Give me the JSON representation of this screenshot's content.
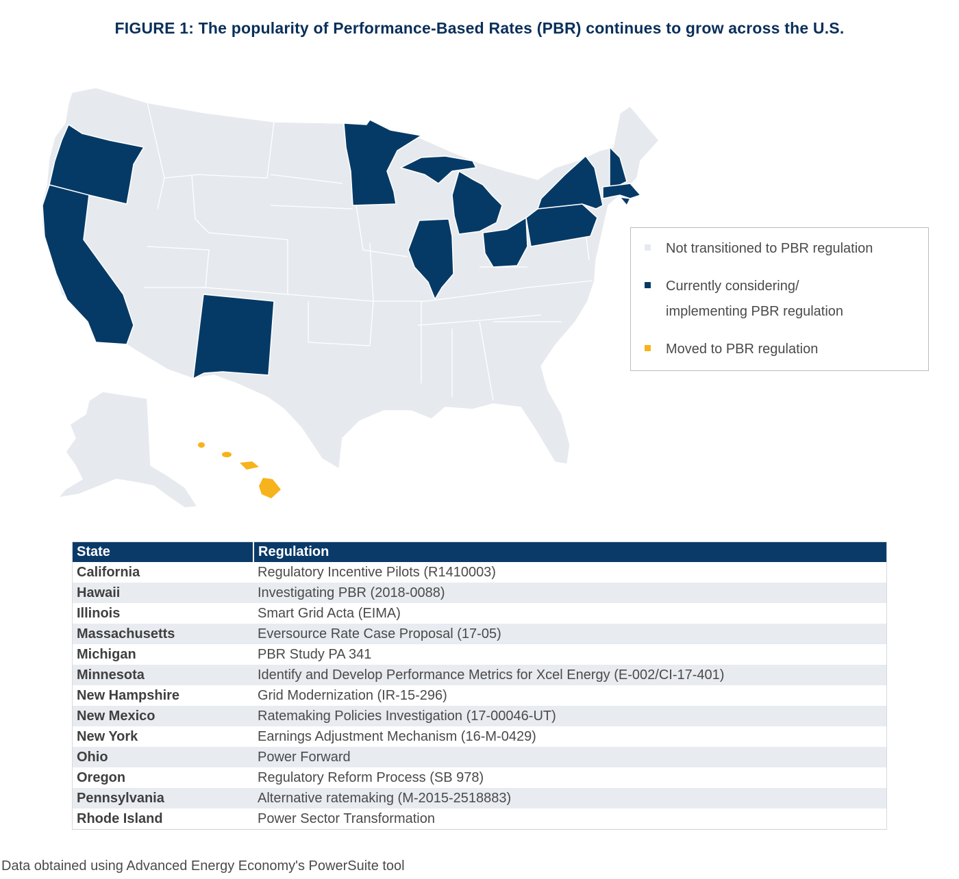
{
  "title": "FIGURE 1: The popularity of Performance-Based Rates (PBR) continues to grow across the U.S.",
  "colors": {
    "not_transitioned": "#e6eaee",
    "considering": "#063a66",
    "moved": "#f6b31b",
    "border": "#ffffff"
  },
  "legend": [
    {
      "label": "Not transitioned to PBR regulation",
      "status": "not_transitioned"
    },
    {
      "label": "Currently considering/\nimplementing PBR regulation",
      "status": "considering"
    },
    {
      "label": "Moved to PBR regulation",
      "status": "moved"
    }
  ],
  "map": {
    "considering_states": [
      "Oregon",
      "California",
      "New Mexico",
      "Minnesota",
      "Michigan",
      "Illinois",
      "Ohio",
      "Pennsylvania",
      "New York",
      "New Hampshire",
      "Massachusetts",
      "Rhode Island"
    ],
    "moved_states": [
      "Hawaii"
    ]
  },
  "table": {
    "headers": [
      "State",
      "Regulation"
    ],
    "rows": [
      {
        "state": "California",
        "regulation": "Regulatory Incentive Pilots (R1410003)"
      },
      {
        "state": "Hawaii",
        "regulation": "Investigating PBR (2018-0088)"
      },
      {
        "state": "Illinois",
        "regulation": "Smart Grid Acta (EIMA)"
      },
      {
        "state": "Massachusetts",
        "regulation": "Eversource Rate Case Proposal (17-05)"
      },
      {
        "state": "Michigan",
        "regulation": "PBR Study PA 341"
      },
      {
        "state": "Minnesota",
        "regulation": "Identify and Develop Performance Metrics for Xcel Energy (E-002/CI-17-401)"
      },
      {
        "state": "New Hampshire",
        "regulation": "Grid Modernization (IR-15-296)"
      },
      {
        "state": "New Mexico",
        "regulation": "Ratemaking Policies Investigation (17-00046-UT)"
      },
      {
        "state": "New York",
        "regulation": "Earnings Adjustment Mechanism (16-M-0429)"
      },
      {
        "state": "Ohio",
        "regulation": "Power Forward"
      },
      {
        "state": "Oregon",
        "regulation": "Regulatory Reform Process (SB 978)"
      },
      {
        "state": "Pennsylvania",
        "regulation": "Alternative ratemaking (M-2015-2518883)"
      },
      {
        "state": "Rhode Island",
        "regulation": "Power Sector Transformation"
      }
    ]
  },
  "source": "Data obtained using Advanced Energy Economy's PowerSuite tool"
}
